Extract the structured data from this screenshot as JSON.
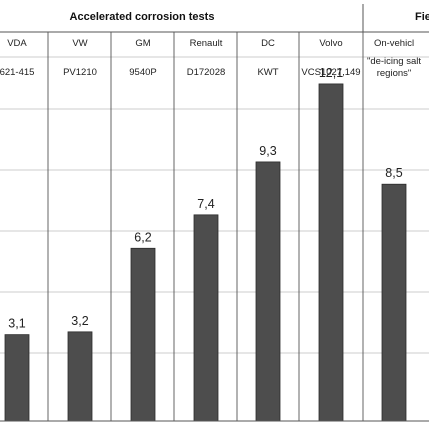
{
  "header": {
    "group_title": "Accelerated corrosion tests",
    "group_title_right": "Fie"
  },
  "chart_data": {
    "type": "bar",
    "categories": [
      "VDA",
      "VW",
      "GM",
      "Renault",
      "DC",
      "Volvo",
      "On-vehicle"
    ],
    "category_labels": [
      "VDA",
      "VW",
      "GM",
      "Renault",
      "DC",
      "Volvo",
      "On-vehicl"
    ],
    "standards": [
      "621-415",
      "PV1210",
      "9540P",
      "D172028",
      "KWT",
      "VCS1027,149"
    ],
    "field_note": [
      "\"de-icing salt",
      "regions\""
    ],
    "values": [
      3.1,
      3.2,
      6.2,
      7.4,
      9.3,
      12.1,
      8.5
    ],
    "value_labels": [
      "3,1",
      "3,2",
      "6,2",
      "7,4",
      "9,3",
      "12,1",
      "8,5"
    ],
    "title": "",
    "xlabel": "",
    "ylabel": "",
    "ylim": [
      0,
      14
    ],
    "grid": "horizontal",
    "colors": {
      "bar": "#4d4d4d",
      "bar_stroke": "#2b2b2b",
      "grid": "#bbbbbb",
      "frame": "#555555"
    }
  }
}
